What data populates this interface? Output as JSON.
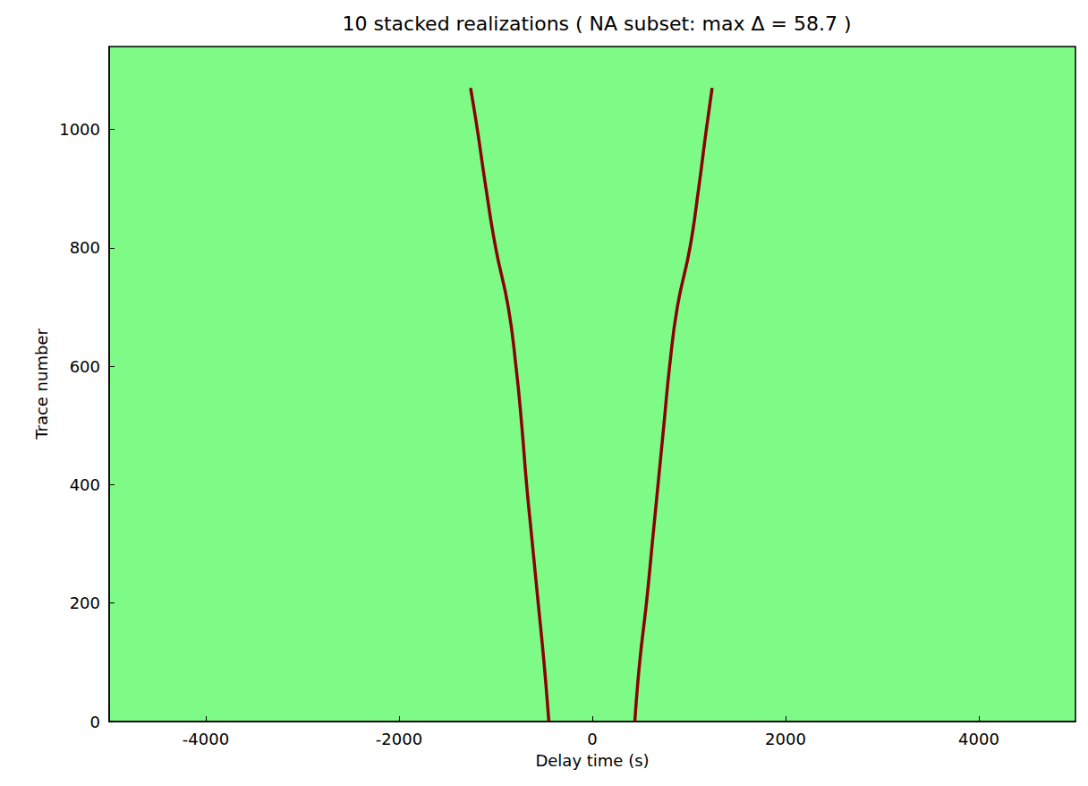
{
  "chart_data": {
    "type": "line",
    "title": "10 stacked realizations ( NA subset: max Δ = 58.7 )",
    "x_label": "Delay time (s)",
    "y_label": "Trace number",
    "xlim": [
      -5000,
      5000
    ],
    "xticks": [
      -4000,
      -2000,
      0,
      2000,
      4000
    ],
    "ylim": [
      0,
      1140
    ],
    "yticks": [
      0,
      200,
      400,
      600,
      800,
      1000
    ],
    "grid": false,
    "series": [
      {
        "color": "#8b0000",
        "line_style": "solid",
        "x": [
          -450,
          -500,
          -560,
          -620,
          -680,
          -730,
          -790,
          -870,
          -1000,
          -1100,
          -1190,
          -1260
        ],
        "values": [
          0,
          100,
          200,
          300,
          400,
          500,
          600,
          700,
          800,
          900,
          1000,
          1070
        ]
      },
      {
        "color": "#8b0000",
        "line_style": "solid",
        "x": [
          440,
          490,
          560,
          620,
          680,
          740,
          800,
          880,
          1010,
          1100,
          1180,
          1240
        ],
        "values": [
          0,
          100,
          200,
          300,
          400,
          500,
          600,
          700,
          800,
          900,
          1000,
          1070
        ]
      }
    ]
  }
}
